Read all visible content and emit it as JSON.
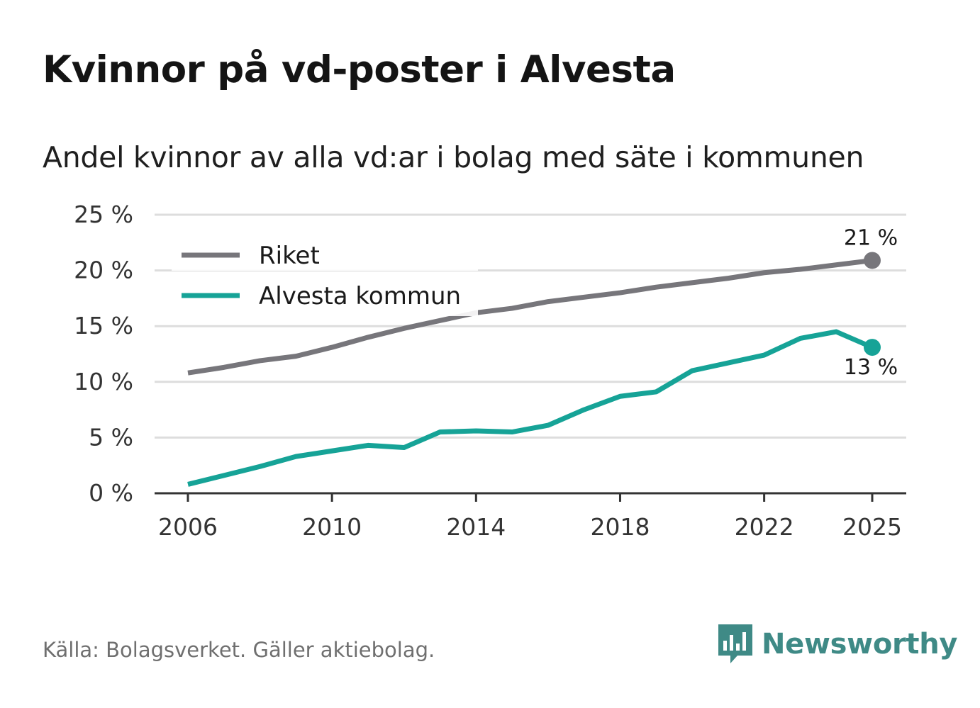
{
  "header": {
    "title": "Kvinnor på vd-poster i Alvesta",
    "subtitle": "Andel kvinnor av alla vd:ar i bolag med säte i kommunen"
  },
  "footer": {
    "source": "Källa: Bolagsverket. Gäller aktiebolag.",
    "brand": "Newsworthy"
  },
  "colors": {
    "riket": "#77767b",
    "alvesta": "#16a397",
    "grid": "#dddddd",
    "axis": "#333333",
    "brand": "#3f8a86"
  },
  "chart_data": {
    "type": "line",
    "title": "Kvinnor på vd-poster i Alvesta",
    "subtitle": "Andel kvinnor av alla vd:ar i bolag med säte i kommunen",
    "xlabel": "",
    "ylabel": "",
    "x": [
      2006,
      2007,
      2008,
      2009,
      2010,
      2011,
      2012,
      2013,
      2014,
      2015,
      2016,
      2017,
      2018,
      2019,
      2020,
      2021,
      2022,
      2023,
      2024,
      2025
    ],
    "xlim": [
      2006,
      2025
    ],
    "ylim": [
      0,
      25
    ],
    "x_ticks": [
      2006,
      2010,
      2014,
      2018,
      2022,
      2025
    ],
    "x_tick_labels": [
      "2006",
      "2010",
      "2014",
      "2018",
      "2022",
      "2025"
    ],
    "y_ticks": [
      0,
      5,
      10,
      15,
      20,
      25
    ],
    "y_tick_labels": [
      "0 %",
      "5 %",
      "10 %",
      "15 %",
      "20 %",
      "25 %"
    ],
    "grid": true,
    "legend_position": "top-left",
    "series": [
      {
        "name": "Riket",
        "color_key": "riket",
        "values": [
          10.8,
          11.3,
          11.9,
          12.3,
          13.1,
          14.0,
          14.8,
          15.5,
          16.2,
          16.6,
          17.2,
          17.6,
          18.0,
          18.5,
          18.9,
          19.3,
          19.8,
          20.1,
          20.5,
          20.9
        ],
        "end_label": "21 %",
        "end_label_position": "above"
      },
      {
        "name": "Alvesta kommun",
        "color_key": "alvesta",
        "values": [
          0.8,
          1.6,
          2.4,
          3.3,
          3.8,
          4.3,
          4.1,
          5.5,
          5.6,
          5.5,
          6.1,
          7.5,
          8.7,
          9.1,
          11.0,
          11.7,
          12.4,
          13.9,
          14.5,
          13.1
        ],
        "end_label": "13 %",
        "end_label_position": "below"
      }
    ]
  }
}
